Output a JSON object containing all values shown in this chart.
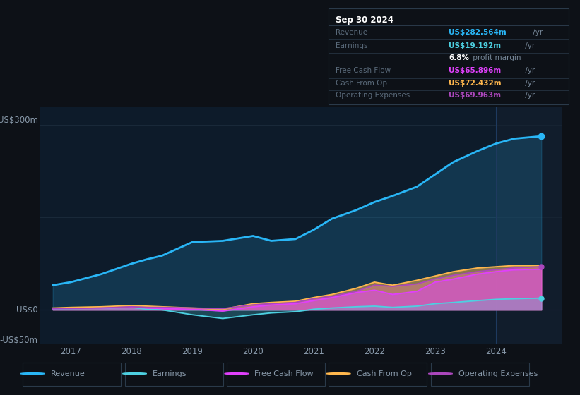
{
  "bg_color": "#0d1117",
  "chart_bg": "#0d1b2a",
  "ylabel_300": "US$300m",
  "ylabel_0": "US$0",
  "ylabel_neg50": "-US$50m",
  "x_years": [
    2016.7,
    2017.0,
    2017.5,
    2018.0,
    2018.25,
    2018.5,
    2019.0,
    2019.5,
    2020.0,
    2020.3,
    2020.7,
    2021.0,
    2021.3,
    2021.7,
    2022.0,
    2022.3,
    2022.7,
    2023.0,
    2023.3,
    2023.7,
    2024.0,
    2024.3,
    2024.75
  ],
  "revenue": [
    40,
    45,
    58,
    75,
    82,
    88,
    110,
    112,
    120,
    112,
    115,
    130,
    148,
    162,
    175,
    185,
    200,
    220,
    240,
    258,
    270,
    278,
    282
  ],
  "earnings": [
    2,
    2,
    3,
    4,
    1,
    0,
    -8,
    -14,
    -8,
    -5,
    -3,
    1,
    3,
    5,
    6,
    4,
    6,
    10,
    12,
    15,
    17,
    18,
    19
  ],
  "free_cash_flow": [
    2,
    3,
    3,
    4,
    3,
    2,
    1,
    -2,
    5,
    8,
    10,
    15,
    20,
    28,
    32,
    25,
    30,
    45,
    50,
    58,
    62,
    65,
    66
  ],
  "cash_from_op": [
    3,
    4,
    5,
    7,
    6,
    5,
    3,
    1,
    10,
    12,
    14,
    20,
    25,
    35,
    45,
    40,
    48,
    55,
    62,
    68,
    70,
    72,
    72
  ],
  "op_expenses": [
    2,
    2,
    3,
    5,
    4,
    4,
    3,
    2,
    8,
    10,
    12,
    18,
    22,
    30,
    40,
    38,
    42,
    50,
    56,
    62,
    65,
    68,
    70
  ],
  "revenue_color": "#29b6f6",
  "earnings_color": "#4dd0e1",
  "fcf_color": "#e040fb",
  "cfo_color": "#ffb74d",
  "opex_color": "#ab47bc",
  "grid_color": "#1a2a3a",
  "text_color": "#8899aa",
  "legend_items": [
    "Revenue",
    "Earnings",
    "Free Cash Flow",
    "Cash From Op",
    "Operating Expenses"
  ],
  "info_box": {
    "title": "Sep 30 2024",
    "rows": [
      {
        "label": "Revenue",
        "value": "US$282.564m",
        "color": "#29b6f6"
      },
      {
        "label": "Earnings",
        "value": "US$19.192m",
        "color": "#4dd0e1"
      },
      {
        "label": "",
        "value": "6.8% profit margin",
        "color": "#ffffff"
      },
      {
        "label": "Free Cash Flow",
        "value": "US$65.896m",
        "color": "#e040fb"
      },
      {
        "label": "Cash From Op",
        "value": "US$72.432m",
        "color": "#ffb74d"
      },
      {
        "label": "Operating Expenses",
        "value": "US$69.963m",
        "color": "#ab47bc"
      }
    ]
  },
  "ylim": [
    -55,
    330
  ],
  "xlim": [
    2016.5,
    2025.1
  ]
}
